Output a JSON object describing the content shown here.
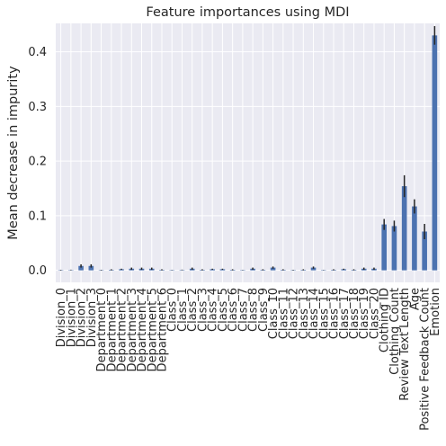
{
  "chart_data": {
    "type": "bar",
    "title": "Feature importances using MDI",
    "xlabel": "",
    "ylabel": "Mean decrease in impurity",
    "ylim": [
      -0.022,
      0.452
    ],
    "yticks": [
      0.0,
      0.1,
      0.2,
      0.3,
      0.4
    ],
    "ytick_labels": [
      "0.0",
      "0.1",
      "0.2",
      "0.3",
      "0.4"
    ],
    "grid": true,
    "bar_color": "#4c72b0",
    "errorbar_color": "#262626",
    "background_color": "#eaeaf2",
    "grid_color": "#ffffff",
    "categories": [
      "Division_0",
      "Division_1",
      "Division_2",
      "Division_3",
      "Department_0",
      "Department_1",
      "Department_2",
      "Department_3",
      "Department_4",
      "Department_5",
      "Department_6",
      "Class_0",
      "Class_1",
      "Class_2",
      "Class_3",
      "Class_4",
      "Class_5",
      "Class_6",
      "Class_7",
      "Class_8",
      "Class_9",
      "Class_10",
      "Class_11",
      "Class_12",
      "Class_13",
      "Class_14",
      "Class_15",
      "Class_16",
      "Class_17",
      "Class_18",
      "Class_19",
      "Class_20",
      "Clothing ID",
      "Clothing Count",
      "Review Text Length",
      "Age",
      "Positive Feedback Count",
      "Emotion"
    ],
    "values": [
      0.0005,
      0.0007,
      0.008,
      0.008,
      0.0005,
      0.001,
      0.002,
      0.003,
      0.003,
      0.003,
      0.001,
      0.0003,
      0.0008,
      0.003,
      0.001,
      0.002,
      0.002,
      0.001,
      0.0003,
      0.003,
      0.001,
      0.005,
      0.001,
      0.0005,
      0.001,
      0.005,
      0.0003,
      0.001,
      0.002,
      0.001,
      0.003,
      0.003,
      0.084,
      0.081,
      0.154,
      0.117,
      0.071,
      0.43
    ],
    "errors": [
      0.0005,
      0.0005,
      0.003,
      0.003,
      0.0005,
      0.001,
      0.001,
      0.002,
      0.002,
      0.002,
      0.001,
      0.0003,
      0.0005,
      0.002,
      0.001,
      0.001,
      0.001,
      0.001,
      0.0003,
      0.002,
      0.001,
      0.002,
      0.001,
      0.0005,
      0.001,
      0.002,
      0.0003,
      0.001,
      0.001,
      0.001,
      0.002,
      0.002,
      0.01,
      0.01,
      0.02,
      0.013,
      0.014,
      0.017
    ]
  }
}
